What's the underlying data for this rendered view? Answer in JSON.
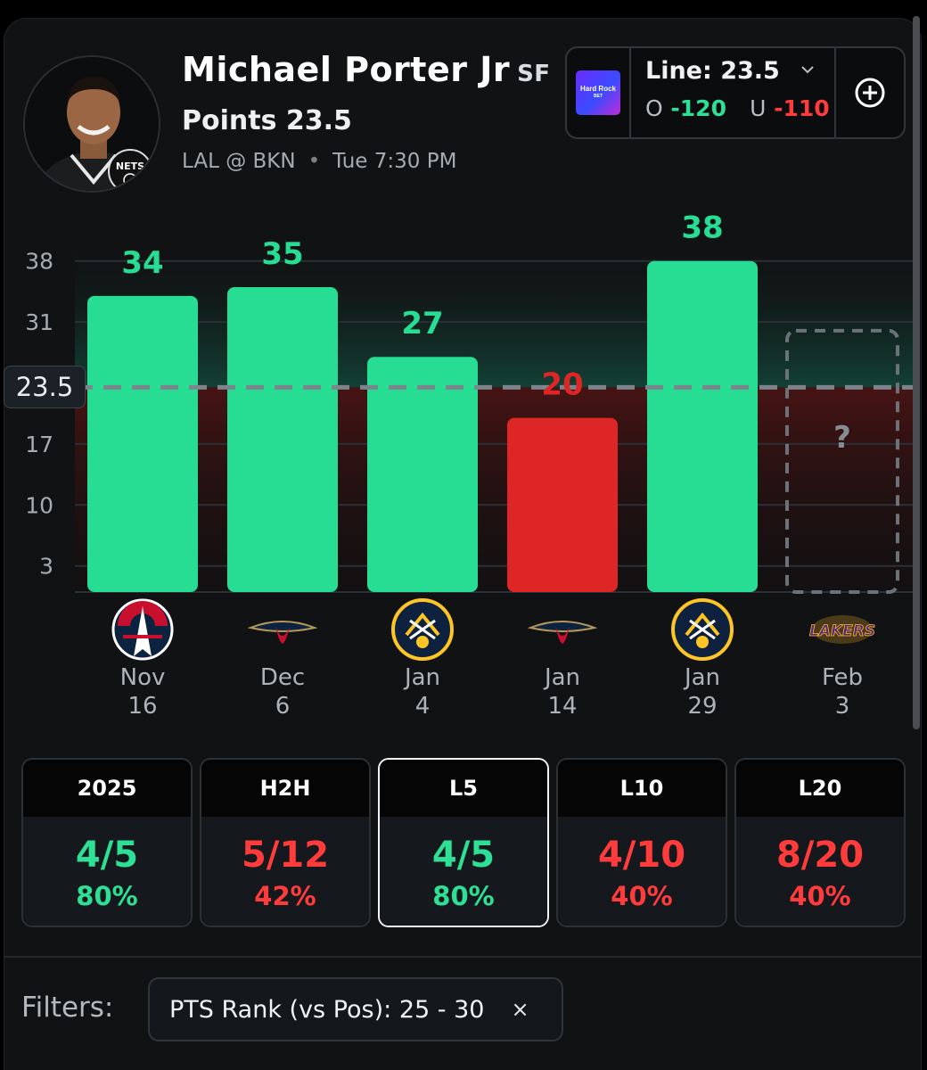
{
  "player": {
    "name": "Michael Porter Jr",
    "position": "SF",
    "market": "Points 23.5",
    "matchup": "LAL @ BKN",
    "separator": "•",
    "game_time": "Tue 7:30 PM",
    "team_logo_text": "NETS"
  },
  "book": {
    "logo_line1": "Hard Rock",
    "logo_line2": "BET",
    "line_label": "Line: 23.5",
    "over_label": "O",
    "over_odds": "-120",
    "under_label": "U",
    "under_odds": "-110",
    "add_icon": "plus-circle-icon",
    "dropdown_icon": "chevron-down-icon"
  },
  "chart_data": {
    "type": "bar",
    "categories": [
      "Nov 16",
      "Dec 6",
      "Jan 4",
      "Jan 14",
      "Jan 29",
      "Feb 3"
    ],
    "values": [
      34,
      35,
      27,
      20,
      38,
      null
    ],
    "value_labels": [
      "34",
      "35",
      "27",
      "20",
      "38",
      "?"
    ],
    "date_month": [
      "Nov",
      "Dec",
      "Jan",
      "Jan",
      "Jan",
      "Feb"
    ],
    "date_day": [
      "16",
      "6",
      "4",
      "14",
      "29",
      "3"
    ],
    "opponents": [
      "Washington Wizards",
      "New Orleans Pelicans",
      "Denver Nuggets",
      "New Orleans Pelicans",
      "Denver Nuggets",
      "Los Angeles Lakers"
    ],
    "opponent_logo_text": [
      "",
      "",
      "",
      "",
      "",
      "LAKERS"
    ],
    "line": 23.5,
    "line_label": "23.5",
    "yticks": [
      3,
      10,
      17,
      31,
      38
    ],
    "ylim": [
      0,
      40
    ],
    "colors": {
      "over": "#27dd93",
      "under": "#df2626",
      "pending": "#6b727a"
    }
  },
  "stat_tabs": [
    {
      "label": "2025",
      "fraction": "4/5",
      "percent": "80%",
      "status": "over",
      "active": false
    },
    {
      "label": "H2H",
      "fraction": "5/12",
      "percent": "42%",
      "status": "under",
      "active": false
    },
    {
      "label": "L5",
      "fraction": "4/5",
      "percent": "80%",
      "status": "over",
      "active": true
    },
    {
      "label": "L10",
      "fraction": "4/10",
      "percent": "40%",
      "status": "under",
      "active": false
    },
    {
      "label": "L20",
      "fraction": "8/20",
      "percent": "40%",
      "status": "under",
      "active": false
    }
  ],
  "filters": {
    "label": "Filters:",
    "chip_label": "PTS Rank (vs Pos):",
    "chip_value": "25 - 30",
    "chip_close": "×"
  }
}
